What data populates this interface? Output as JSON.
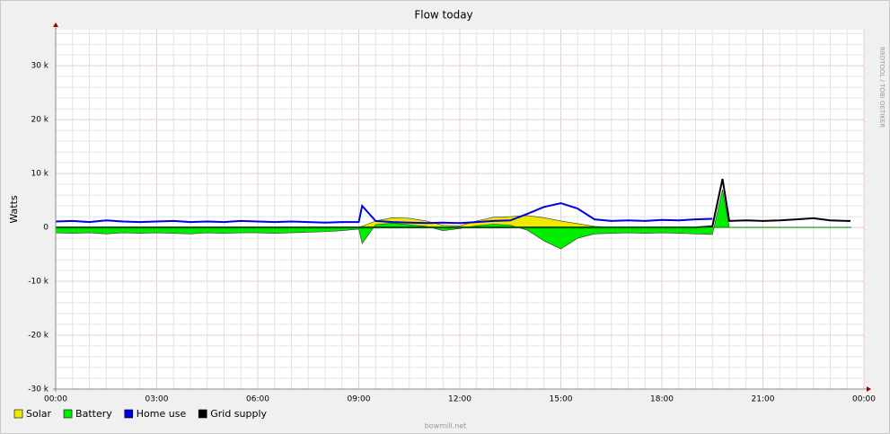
{
  "chart_data": {
    "type": "line",
    "title": "Flow today",
    "y_label": "Watts",
    "side_text": "RRDTOOL / TOBI OETIKER",
    "footer": "bowmill.net",
    "x": [
      0,
      0.5,
      1,
      1.5,
      2,
      2.5,
      3,
      3.5,
      4,
      4.5,
      5,
      5.5,
      6,
      6.5,
      7,
      7.5,
      8,
      8.5,
      9,
      9.1,
      9.5,
      10,
      10.5,
      11,
      11.5,
      12,
      12.5,
      13,
      13.5,
      14,
      14.5,
      15,
      15.5,
      16,
      16.5,
      17,
      17.5,
      18,
      18.5,
      19,
      19.5,
      19.8,
      20,
      20.5,
      21,
      21.5,
      22,
      22.5,
      23,
      23.5,
      23.6
    ],
    "series": [
      {
        "name": "Solar",
        "color": "#f0e800",
        "kind": "area",
        "values": [
          0,
          0,
          0,
          0,
          0,
          0,
          0,
          0,
          0,
          0,
          0,
          0,
          0,
          0,
          0,
          0,
          0,
          0,
          0,
          200,
          1200,
          1800,
          1700,
          1200,
          400,
          300,
          1200,
          1900,
          2000,
          2200,
          1800,
          1200,
          700,
          200,
          0,
          0,
          0,
          0,
          0,
          0,
          0,
          0,
          0,
          0,
          0,
          0,
          0,
          0,
          0,
          0,
          0
        ]
      },
      {
        "name": "Battery",
        "color": "#00ee00",
        "kind": "area",
        "values": [
          -1000,
          -1100,
          -1000,
          -1200,
          -1000,
          -1100,
          -1000,
          -1100,
          -1200,
          -1000,
          -1100,
          -1000,
          -1000,
          -1100,
          -1000,
          -900,
          -800,
          -600,
          -300,
          -3000,
          500,
          800,
          500,
          200,
          -600,
          -200,
          300,
          600,
          400,
          -500,
          -2500,
          -4000,
          -2000,
          -1200,
          -1100,
          -1000,
          -1100,
          -1000,
          -1100,
          -1200,
          -1300,
          7000,
          0,
          0,
          0,
          0,
          0,
          0,
          0,
          0,
          0
        ]
      },
      {
        "name": "Home use",
        "color": "#0000e0",
        "kind": "line",
        "values": [
          1100,
          1200,
          1000,
          1300,
          1100,
          1000,
          1100,
          1200,
          1000,
          1100,
          1000,
          1200,
          1100,
          1000,
          1100,
          1000,
          900,
          1000,
          1000,
          4000,
          1200,
          1000,
          900,
          800,
          900,
          800,
          1000,
          1200,
          1300,
          2500,
          3800,
          4500,
          3500,
          1500,
          1200,
          1300,
          1200,
          1400,
          1300,
          1500,
          1600,
          null,
          null,
          null,
          null,
          null,
          null,
          null,
          null,
          null,
          null
        ]
      },
      {
        "name": "Grid supply",
        "color": "#000000",
        "kind": "line",
        "values": [
          0,
          0,
          0,
          0,
          0,
          0,
          0,
          0,
          0,
          0,
          0,
          0,
          0,
          0,
          0,
          0,
          0,
          0,
          0,
          0,
          0,
          0,
          0,
          0,
          0,
          0,
          0,
          0,
          0,
          0,
          0,
          0,
          0,
          0,
          0,
          0,
          0,
          0,
          0,
          0,
          200,
          9000,
          1200,
          1300,
          1200,
          1300,
          1500,
          1700,
          1300,
          1200,
          1200
        ]
      }
    ],
    "xlim": [
      0,
      24
    ],
    "xticks": [
      {
        "value": 0,
        "label": "00:00"
      },
      {
        "value": 3,
        "label": "03:00"
      },
      {
        "value": 6,
        "label": "06:00"
      },
      {
        "value": 9,
        "label": "09:00"
      },
      {
        "value": 12,
        "label": "12:00"
      },
      {
        "value": 15,
        "label": "15:00"
      },
      {
        "value": 18,
        "label": "18:00"
      },
      {
        "value": 21,
        "label": "21:00"
      },
      {
        "value": 24,
        "label": "00:00"
      }
    ],
    "ylim": [
      -30000,
      36700
    ],
    "yticks": [
      {
        "value": -30000,
        "label": "-30 k"
      },
      {
        "value": -20000,
        "label": "-20 k"
      },
      {
        "value": -10000,
        "label": "-10 k"
      },
      0,
      {
        "value": 10000,
        "label": "10 k"
      },
      {
        "value": 20000,
        "label": "20 k"
      },
      {
        "value": 30000,
        "label": "30 k"
      }
    ],
    "grid": true,
    "legend": "bottom-left"
  }
}
